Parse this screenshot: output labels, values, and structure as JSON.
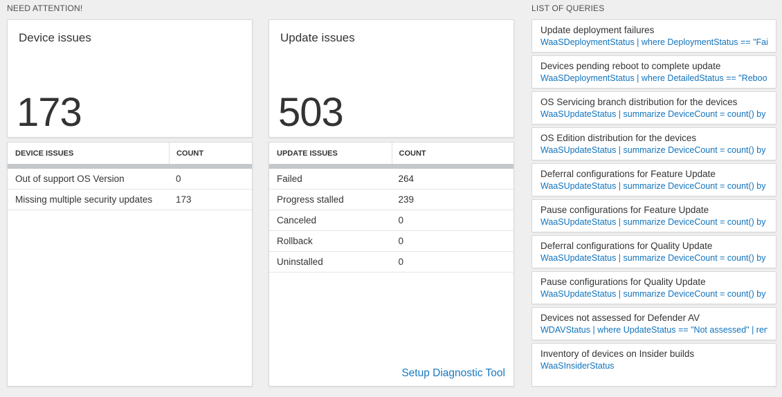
{
  "colors": {
    "page_bg": "#efefef",
    "accent_blue": "#1173bc",
    "link_blue": "#1879c0",
    "bar_gray": "#c4c8cb"
  },
  "sections": {
    "need_attention_title": "NEED ATTENTION!",
    "list_of_queries_title": "LIST OF QUERIES"
  },
  "device_panel": {
    "title": "Device issues",
    "big_number": "173",
    "table": {
      "headers": [
        "DEVICE ISSUES",
        "COUNT"
      ],
      "rows": [
        {
          "label": "Out of support OS Version",
          "count": "0"
        },
        {
          "label": "Missing multiple security updates",
          "count": "173"
        }
      ]
    }
  },
  "update_panel": {
    "title": "Update issues",
    "big_number": "503",
    "table": {
      "headers": [
        "UPDATE ISSUES",
        "COUNT"
      ],
      "rows": [
        {
          "label": "Failed",
          "count": "264"
        },
        {
          "label": "Progress stalled",
          "count": "239"
        },
        {
          "label": "Canceled",
          "count": "0"
        },
        {
          "label": "Rollback",
          "count": "0"
        },
        {
          "label": "Uninstalled",
          "count": "0"
        }
      ]
    },
    "link_label": "Setup Diagnostic Tool"
  },
  "queries": [
    {
      "title": "Update deployment failures",
      "query": "WaaSDeploymentStatus | where DeploymentStatus == \"Failed\" |..."
    },
    {
      "title": "Devices pending reboot to complete update",
      "query": "WaaSDeploymentStatus | where DetailedStatus == \"Reboot pend..."
    },
    {
      "title": "OS Servicing branch distribution for the devices",
      "query": "WaaSUpdateStatus | summarize DeviceCount = count() by OSSer..."
    },
    {
      "title": "OS Edition distribution for the devices",
      "query": "WaaSUpdateStatus | summarize DeviceCount = count() by OSEdit..."
    },
    {
      "title": "Deferral configurations for Feature Update",
      "query": "WaaSUpdateStatus | summarize DeviceCount = count() by Featur..."
    },
    {
      "title": "Pause configurations for Feature Update",
      "query": "WaaSUpdateStatus | summarize DeviceCount = count() by Featur..."
    },
    {
      "title": "Deferral configurations for Quality Update",
      "query": "WaaSUpdateStatus | summarize DeviceCount = count() by Qualit..."
    },
    {
      "title": "Pause configurations for Quality Update",
      "query": "WaaSUpdateStatus | summarize DeviceCount = count() by Qualit..."
    },
    {
      "title": "Devices not assessed for Defender AV",
      "query": "WDAVStatus | where UpdateStatus == \"Not assessed\" | render ta..."
    },
    {
      "title": "Inventory of devices on Insider builds",
      "query": "WaaSInsiderStatus"
    }
  ]
}
